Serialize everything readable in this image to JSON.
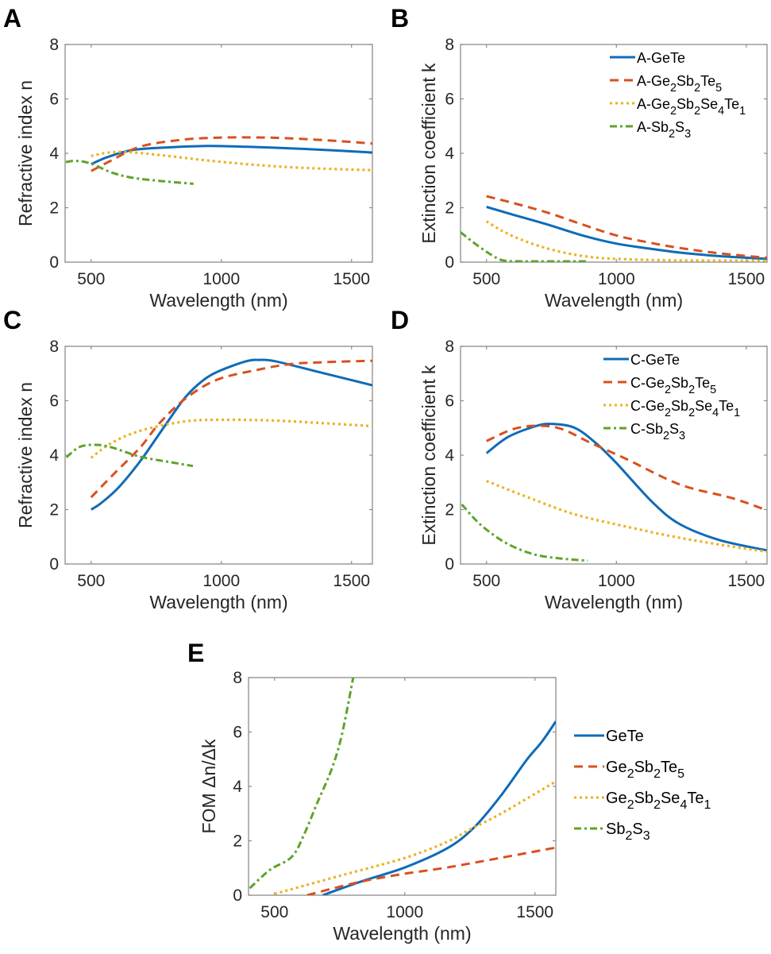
{
  "figure": {
    "colors": {
      "GeTe": "#0f6bb8",
      "GST": "#d9501e",
      "GSST": "#edb120",
      "SbS": "#5fa32a"
    },
    "styles": {
      "GeTe": "solid",
      "GST": "dashed",
      "GSST": "dotted",
      "SbS": "dashdot"
    }
  },
  "chart_data": [
    {
      "panel": "A",
      "type": "line",
      "title": "",
      "xlabel": "Wavelength (nm)",
      "ylabel": "Refractive index n",
      "xlim": [
        400,
        1580
      ],
      "ylim": [
        0,
        8
      ],
      "xticks": [
        500,
        1000,
        1500
      ],
      "yticks": [
        0,
        2,
        4,
        6,
        8
      ],
      "grid": false,
      "legend": null,
      "series": [
        {
          "key": "GeTe",
          "name": "A-GeTe",
          "x": [
            500,
            560,
            659,
            800,
            943,
            1100,
            1300,
            1450,
            1580
          ],
          "y": [
            3.6,
            3.85,
            4.12,
            4.22,
            4.27,
            4.24,
            4.17,
            4.1,
            4.03
          ]
        },
        {
          "key": "GST",
          "name": "A-Ge2Sb2Te5",
          "x": [
            500,
            580,
            690,
            850,
            1004,
            1150,
            1268,
            1450,
            1580
          ],
          "y": [
            3.35,
            3.75,
            4.25,
            4.5,
            4.58,
            4.58,
            4.55,
            4.45,
            4.36
          ]
        },
        {
          "key": "GSST",
          "name": "A-Ge2Sb2Se4Te1",
          "x": [
            500,
            560,
            628,
            750,
            963,
            1165,
            1350,
            1580
          ],
          "y": [
            3.9,
            4.02,
            4.05,
            3.95,
            3.72,
            3.55,
            3.45,
            3.38
          ]
        },
        {
          "key": "SbS",
          "name": "A-Sb2S3",
          "x": [
            403,
            445,
            500,
            577,
            659,
            780,
            893
          ],
          "y": [
            3.68,
            3.72,
            3.62,
            3.3,
            3.1,
            2.97,
            2.88
          ]
        }
      ]
    },
    {
      "panel": "B",
      "type": "line",
      "title": "",
      "xlabel": "Wavelength (nm)",
      "ylabel": "Extinction coefficient k",
      "xlim": [
        400,
        1580
      ],
      "ylim": [
        0,
        8
      ],
      "xticks": [
        500,
        1000,
        1500
      ],
      "yticks": [
        0,
        2,
        4,
        6,
        8
      ],
      "grid": false,
      "legend": "top-right",
      "series": [
        {
          "key": "GeTe",
          "name": "A-GeTe",
          "legend": [
            [
              "A-GeTe",
              ""
            ]
          ],
          "x": [
            500,
            600,
            735,
            870,
            1000,
            1125,
            1245,
            1400,
            1580
          ],
          "y": [
            2.03,
            1.75,
            1.38,
            0.98,
            0.68,
            0.5,
            0.35,
            0.22,
            0.12
          ]
        },
        {
          "key": "GST",
          "name": "A-Ge2Sb2Te5",
          "legend": [
            [
              "A-Ge",
              ""
            ],
            [
              "2",
              "sub"
            ],
            [
              "Sb",
              ""
            ],
            [
              "2",
              "sub"
            ],
            [
              "Te",
              ""
            ],
            [
              "5",
              "sub"
            ]
          ],
          "x": [
            500,
            600,
            735,
            870,
            1000,
            1125,
            1245,
            1400,
            1580
          ],
          "y": [
            2.42,
            2.18,
            1.82,
            1.38,
            0.98,
            0.72,
            0.52,
            0.32,
            0.16
          ]
        },
        {
          "key": "GSST",
          "name": "A-Ge2Sb2Se4Te1",
          "legend": [
            [
              "A-Ge",
              ""
            ],
            [
              "2",
              "sub"
            ],
            [
              "Sb",
              ""
            ],
            [
              "2",
              "sub"
            ],
            [
              "Se",
              ""
            ],
            [
              "4",
              "sub"
            ],
            [
              "Te",
              ""
            ],
            [
              "1",
              "sub"
            ]
          ],
          "x": [
            500,
            560,
            635,
            735,
            835,
            920,
            1000,
            1200,
            1580
          ],
          "y": [
            1.5,
            1.15,
            0.82,
            0.5,
            0.28,
            0.17,
            0.12,
            0.07,
            0.05
          ]
        },
        {
          "key": "SbS",
          "name": "A-Sb2S3",
          "legend": [
            [
              "A-Sb",
              ""
            ],
            [
              "2",
              "sub"
            ],
            [
              "S",
              ""
            ],
            [
              "3",
              "sub"
            ]
          ],
          "x": [
            400,
            450,
            500,
            540,
            573,
            650,
            800,
            890
          ],
          "y": [
            1.1,
            0.72,
            0.38,
            0.15,
            0.05,
            0.03,
            0.03,
            0.03
          ]
        }
      ]
    },
    {
      "panel": "C",
      "type": "line",
      "title": "",
      "xlabel": "Wavelength (nm)",
      "ylabel": "Refractive index n",
      "xlim": [
        400,
        1580
      ],
      "ylim": [
        0,
        8
      ],
      "xticks": [
        500,
        1000,
        1500
      ],
      "yticks": [
        0,
        2,
        4,
        6,
        8
      ],
      "grid": false,
      "legend": null,
      "series": [
        {
          "key": "GeTe",
          "name": "C-GeTe",
          "x": [
            500,
            540,
            607,
            690,
            781,
            861,
            930,
            994,
            1095,
            1146,
            1207,
            1369,
            1580
          ],
          "y": [
            2.0,
            2.25,
            2.83,
            3.8,
            5.05,
            6.12,
            6.75,
            7.1,
            7.45,
            7.5,
            7.45,
            7.07,
            6.57
          ]
        },
        {
          "key": "GST",
          "name": "C-Ge2Sb2Te5",
          "x": [
            500,
            586,
            690,
            760,
            861,
            983,
            1146,
            1268,
            1400,
            1580
          ],
          "y": [
            2.45,
            3.3,
            4.3,
            5.15,
            6.07,
            6.77,
            7.15,
            7.35,
            7.42,
            7.47
          ]
        },
        {
          "key": "GSST",
          "name": "C-Ge2Sb2Se4Te1",
          "x": [
            500,
            577,
            690,
            861,
            1013,
            1207,
            1400,
            1580
          ],
          "y": [
            3.9,
            4.44,
            4.9,
            5.24,
            5.3,
            5.27,
            5.17,
            5.07
          ]
        },
        {
          "key": "SbS",
          "name": "C-Sb2S3",
          "x": [
            405,
            455,
            516,
            577,
            690,
            800,
            891
          ],
          "y": [
            3.92,
            4.3,
            4.38,
            4.29,
            3.94,
            3.75,
            3.6
          ]
        }
      ]
    },
    {
      "panel": "D",
      "type": "line",
      "title": "",
      "xlabel": "Wavelength (nm)",
      "ylabel": "Extinction coefficient k",
      "xlim": [
        400,
        1580
      ],
      "ylim": [
        0,
        8
      ],
      "xticks": [
        500,
        1000,
        1500
      ],
      "yticks": [
        0,
        2,
        4,
        6,
        8
      ],
      "grid": false,
      "legend": "top-right",
      "series": [
        {
          "key": "GeTe",
          "name": "C-GeTe",
          "legend": [
            [
              "C-GeTe",
              ""
            ]
          ],
          "x": [
            500,
            583,
            684,
            745,
            836,
            918,
            1000,
            1141,
            1245,
            1397,
            1580
          ],
          "y": [
            4.07,
            4.67,
            5.05,
            5.15,
            5.02,
            4.47,
            3.71,
            2.25,
            1.46,
            0.88,
            0.5
          ]
        },
        {
          "key": "GST",
          "name": "C-Ge2Sb2Te5",
          "legend": [
            [
              "C-Ge",
              ""
            ],
            [
              "2",
              "sub"
            ],
            [
              "Sb",
              ""
            ],
            [
              "2",
              "sub"
            ],
            [
              "Te",
              ""
            ],
            [
              "5",
              "sub"
            ]
          ],
          "x": [
            500,
            604,
            696,
            787,
            897,
            1040,
            1245,
            1446,
            1580
          ],
          "y": [
            4.52,
            4.96,
            5.08,
            4.97,
            4.47,
            3.85,
            2.92,
            2.42,
            1.97
          ]
        },
        {
          "key": "GSST",
          "name": "C-Ge2Sb2Se4Te1",
          "legend": [
            [
              "C-Ge",
              ""
            ],
            [
              "2",
              "sub"
            ],
            [
              "Sb",
              ""
            ],
            [
              "2",
              "sub"
            ],
            [
              "Se",
              ""
            ],
            [
              "4",
              "sub"
            ],
            [
              "Te",
              ""
            ],
            [
              "1",
              "sub"
            ]
          ],
          "x": [
            500,
            635,
            835,
            1040,
            1245,
            1446,
            1580
          ],
          "y": [
            3.05,
            2.54,
            1.84,
            1.37,
            0.96,
            0.64,
            0.45
          ]
        },
        {
          "key": "SbS",
          "name": "C-Sb2S3",
          "legend": [
            [
              "C-Sb",
              ""
            ],
            [
              "2",
              "sub"
            ],
            [
              "S",
              ""
            ],
            [
              "3",
              "sub"
            ]
          ],
          "x": [
            405,
            450,
            500,
            583,
            684,
            787,
            890
          ],
          "y": [
            2.19,
            1.7,
            1.26,
            0.73,
            0.35,
            0.2,
            0.12
          ]
        }
      ]
    },
    {
      "panel": "E",
      "type": "line",
      "title": "",
      "xlabel": "Wavelength (nm)",
      "ylabel": "FOM Δn/Δk",
      "xlim": [
        400,
        1580
      ],
      "ylim": [
        0,
        8
      ],
      "xticks": [
        500,
        1000,
        1500
      ],
      "yticks": [
        0,
        2,
        4,
        6,
        8
      ],
      "grid": false,
      "legend": "outside-right",
      "series": [
        {
          "key": "GeTe",
          "name": "GeTe",
          "legend": [
            [
              "GeTe",
              ""
            ]
          ],
          "x": [
            685,
            757,
            857,
            1000,
            1162,
            1265,
            1366,
            1467,
            1528,
            1580
          ],
          "y": [
            0.0,
            0.25,
            0.58,
            1.02,
            1.72,
            2.48,
            3.62,
            4.96,
            5.66,
            6.39
          ]
        },
        {
          "key": "GST",
          "name": "Ge2Sb2Te5",
          "legend": [
            [
              "Ge",
              ""
            ],
            [
              "2",
              "sub"
            ],
            [
              "Sb",
              ""
            ],
            [
              "2",
              "sub"
            ],
            [
              "Te",
              ""
            ],
            [
              "5",
              "sub"
            ]
          ],
          "x": [
            625,
            757,
            857,
            1000,
            1162,
            1366,
            1580
          ],
          "y": [
            0.0,
            0.33,
            0.55,
            0.79,
            1.02,
            1.37,
            1.75
          ]
        },
        {
          "key": "GSST",
          "name": "Ge2Sb2Se4Te1",
          "legend": [
            [
              "Ge",
              ""
            ],
            [
              "2",
              "sub"
            ],
            [
              "Sb",
              ""
            ],
            [
              "2",
              "sub"
            ],
            [
              "Se",
              ""
            ],
            [
              "4",
              "sub"
            ],
            [
              "Te",
              ""
            ],
            [
              "1",
              "sub"
            ]
          ],
          "x": [
            500,
            757,
            1000,
            1162,
            1256,
            1366,
            1580
          ],
          "y": [
            0.05,
            0.73,
            1.37,
            1.96,
            2.45,
            2.98,
            4.18
          ]
        },
        {
          "key": "SbS",
          "name": "Sb2S3",
          "legend": [
            [
              "Sb",
              ""
            ],
            [
              "2",
              "sub"
            ],
            [
              "S",
              ""
            ],
            [
              "3",
              "sub"
            ]
          ],
          "x": [
            405,
            482,
            565,
            610,
            665,
            717,
            757,
            802
          ],
          "y": [
            0.26,
            0.93,
            1.4,
            2.16,
            3.42,
            4.58,
            5.84,
            8.0
          ]
        }
      ]
    }
  ]
}
